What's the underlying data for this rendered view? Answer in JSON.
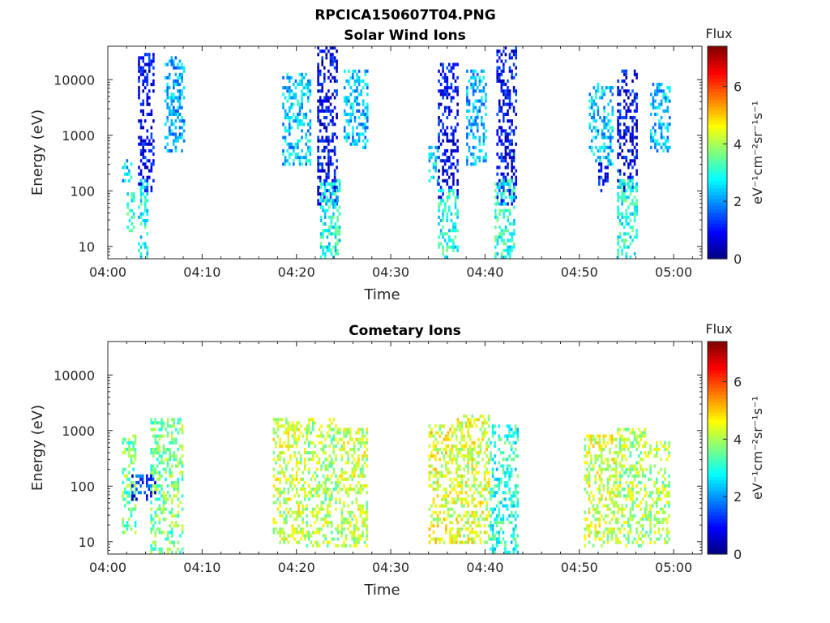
{
  "figure": {
    "title": "RPCICA150607T04.PNG"
  },
  "colorbar": {
    "title": "Flux",
    "unit_label": "eV⁻¹cm⁻²sr⁻¹s⁻¹",
    "range": [
      0,
      7.4
    ],
    "ticks": [
      0,
      2,
      4,
      6
    ],
    "colormap": "jet"
  },
  "chart_data": [
    {
      "type": "heatmap",
      "title": "Solar Wind Ions",
      "xlabel": "Time",
      "ylabel": "Energy (eV)",
      "x_unit": "minutes after 04:00",
      "x_ticks": [
        0,
        10,
        20,
        30,
        40,
        50,
        60
      ],
      "x_tick_labels": [
        "04:00",
        "04:10",
        "04:20",
        "04:30",
        "04:40",
        "04:50",
        "05:00"
      ],
      "xlim": [
        0,
        63
      ],
      "y_scale": "log",
      "ylim": [
        6,
        40000
      ],
      "y_ticks": [
        10,
        100,
        1000,
        10000
      ],
      "y_tick_labels": [
        "10",
        "100",
        "1000",
        "10000"
      ],
      "bursts": [
        {
          "t_start": 1.5,
          "t_end": 2.5,
          "e_min": 150,
          "e_max": 400,
          "flux": 2.5
        },
        {
          "t_start": 2.0,
          "t_end": 2.8,
          "e_min": 20,
          "e_max": 90,
          "flux": 3.0
        },
        {
          "t_start": 3.2,
          "t_end": 4.8,
          "e_min": 100,
          "e_max": 30000,
          "flux": 0.8
        },
        {
          "t_start": 3.2,
          "t_end": 4.3,
          "e_min": 6,
          "e_max": 150,
          "flux": 2.8
        },
        {
          "t_start": 6.0,
          "t_end": 8.0,
          "e_min": 500,
          "e_max": 25000,
          "flux": 2.2
        },
        {
          "t_start": 18.5,
          "t_end": 21.5,
          "e_min": 300,
          "e_max": 12000,
          "flux": 2.4
        },
        {
          "t_start": 22.2,
          "t_end": 24.2,
          "e_min": 60,
          "e_max": 35000,
          "flux": 0.8
        },
        {
          "t_start": 22.5,
          "t_end": 24.5,
          "e_min": 6,
          "e_max": 150,
          "flux": 2.9
        },
        {
          "t_start": 25.0,
          "t_end": 27.5,
          "e_min": 600,
          "e_max": 15000,
          "flux": 2.3
        },
        {
          "t_start": 34.0,
          "t_end": 35.0,
          "e_min": 130,
          "e_max": 600,
          "flux": 2.6
        },
        {
          "t_start": 35.0,
          "t_end": 37.0,
          "e_min": 80,
          "e_max": 18000,
          "flux": 0.9
        },
        {
          "t_start": 35.0,
          "t_end": 37.0,
          "e_min": 6,
          "e_max": 100,
          "flux": 3.0
        },
        {
          "t_start": 38.0,
          "t_end": 40.0,
          "e_min": 300,
          "e_max": 15000,
          "flux": 2.2
        },
        {
          "t_start": 41.2,
          "t_end": 43.2,
          "e_min": 60,
          "e_max": 38000,
          "flux": 0.9
        },
        {
          "t_start": 41.0,
          "t_end": 43.0,
          "e_min": 6,
          "e_max": 150,
          "flux": 3.0
        },
        {
          "t_start": 51.0,
          "t_end": 53.5,
          "e_min": 300,
          "e_max": 8000,
          "flux": 2.4
        },
        {
          "t_start": 52.0,
          "t_end": 53.0,
          "e_min": 100,
          "e_max": 300,
          "flux": 1.0
        },
        {
          "t_start": 54.0,
          "t_end": 56.0,
          "e_min": 100,
          "e_max": 15000,
          "flux": 0.9
        },
        {
          "t_start": 54.0,
          "t_end": 56.0,
          "e_min": 6,
          "e_max": 150,
          "flux": 3.0
        },
        {
          "t_start": 57.5,
          "t_end": 59.5,
          "e_min": 500,
          "e_max": 8000,
          "flux": 2.4
        }
      ]
    },
    {
      "type": "heatmap",
      "title": "Cometary Ions",
      "xlabel": "Time",
      "ylabel": "Energy (eV)",
      "x_unit": "minutes after 04:00",
      "x_ticks": [
        0,
        10,
        20,
        30,
        40,
        50,
        60
      ],
      "x_tick_labels": [
        "04:00",
        "04:10",
        "04:20",
        "04:30",
        "04:40",
        "04:50",
        "05:00"
      ],
      "xlim": [
        0,
        63
      ],
      "y_scale": "log",
      "ylim": [
        6,
        40000
      ],
      "y_ticks": [
        10,
        100,
        1000,
        10000
      ],
      "y_tick_labels": [
        "10",
        "100",
        "1000",
        "10000"
      ],
      "bursts": [
        {
          "t_start": 1.5,
          "t_end": 3.0,
          "e_min": 15,
          "e_max": 800,
          "flux": 3.5
        },
        {
          "t_start": 4.5,
          "t_end": 8.0,
          "e_min": 6,
          "e_max": 1500,
          "flux": 3.6
        },
        {
          "t_start": 2.5,
          "t_end": 5.0,
          "e_min": 60,
          "e_max": 150,
          "flux": 1.2
        },
        {
          "t_start": 17.5,
          "t_end": 21.0,
          "e_min": 10,
          "e_max": 1500,
          "flux": 4.2
        },
        {
          "t_start": 21.0,
          "t_end": 24.5,
          "e_min": 8,
          "e_max": 1500,
          "flux": 4.0
        },
        {
          "t_start": 24.5,
          "t_end": 27.5,
          "e_min": 8,
          "e_max": 1000,
          "flux": 4.2
        },
        {
          "t_start": 34.0,
          "t_end": 37.0,
          "e_min": 10,
          "e_max": 1200,
          "flux": 4.4
        },
        {
          "t_start": 37.0,
          "t_end": 40.5,
          "e_min": 10,
          "e_max": 1800,
          "flux": 4.3
        },
        {
          "t_start": 40.5,
          "t_end": 43.5,
          "e_min": 6,
          "e_max": 1200,
          "flux": 3.0
        },
        {
          "t_start": 50.5,
          "t_end": 54.0,
          "e_min": 8,
          "e_max": 800,
          "flux": 4.3
        },
        {
          "t_start": 54.0,
          "t_end": 57.0,
          "e_min": 8,
          "e_max": 1000,
          "flux": 4.0
        },
        {
          "t_start": 57.0,
          "t_end": 59.5,
          "e_min": 10,
          "e_max": 600,
          "flux": 4.0
        }
      ]
    }
  ]
}
